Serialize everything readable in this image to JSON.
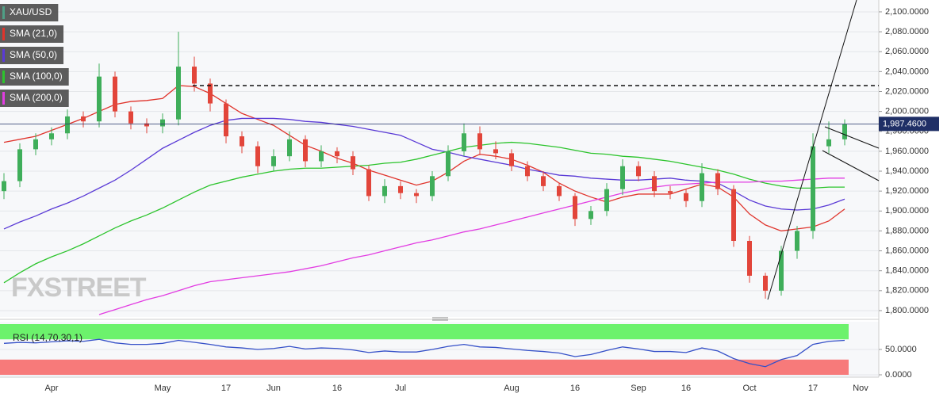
{
  "chart_data": [
    {
      "type": "candlestick",
      "symbol": "XAU/USD",
      "watermark": "FXSTREET",
      "categories": [
        null,
        null,
        null,
        "Apr",
        null,
        null,
        null,
        null,
        null,
        null,
        "May",
        null,
        null,
        null,
        "17",
        null,
        null,
        "Jun",
        null,
        null,
        null,
        "16",
        null,
        null,
        null,
        "Jul",
        null,
        null,
        null,
        null,
        null,
        null,
        "Aug",
        null,
        null,
        null,
        "16",
        null,
        null,
        null,
        "Sep",
        null,
        null,
        "16",
        null,
        null,
        null,
        "Oct",
        null,
        null,
        null,
        "17",
        null,
        null,
        "Nov"
      ],
      "open": [
        1920,
        1930,
        1962,
        1972,
        1978,
        1995,
        1990,
        2035,
        2000,
        1988,
        1985,
        1992,
        2045,
        2028,
        2008,
        1975,
        1965,
        1945,
        1955,
        1972,
        1950,
        1960,
        1955,
        1942,
        1915,
        1925,
        1918,
        1915,
        1935,
        1960,
        1978,
        1962,
        1958,
        1945,
        1935,
        1925,
        1915,
        1892,
        1900,
        1922,
        1945,
        1935,
        1920,
        1918,
        1910,
        1938,
        1922,
        1870,
        1835,
        1820,
        1860,
        1880,
        1965,
        1972,
        null
      ],
      "high": [
        1938,
        1968,
        1978,
        1984,
        2002,
        2000,
        2048,
        2040,
        2005,
        1993,
        1998,
        2080,
        2055,
        2033,
        2012,
        1980,
        1970,
        1962,
        1980,
        1976,
        1966,
        1964,
        1960,
        1946,
        1932,
        1930,
        1922,
        1940,
        1966,
        1988,
        1985,
        1970,
        1962,
        1950,
        1940,
        1928,
        1918,
        1905,
        1928,
        1952,
        1950,
        1940,
        1925,
        1922,
        1948,
        1942,
        1926,
        1875,
        1838,
        1865,
        1885,
        1978,
        1990,
        1992,
        null
      ],
      "low": [
        1912,
        1924,
        1956,
        1966,
        1972,
        1984,
        1984,
        1994,
        1982,
        1978,
        1978,
        1986,
        2020,
        2000,
        1968,
        1958,
        1938,
        1940,
        1950,
        1944,
        1944,
        1948,
        1936,
        1910,
        1908,
        1912,
        1908,
        1910,
        1930,
        1955,
        1956,
        1952,
        1940,
        1930,
        1920,
        1910,
        1885,
        1886,
        1895,
        1916,
        1930,
        1914,
        1912,
        1904,
        1904,
        1916,
        1864,
        1828,
        1812,
        1815,
        1852,
        1872,
        1958,
        1966,
        null
      ],
      "close": [
        1930,
        1962,
        1972,
        1978,
        1995,
        1990,
        2035,
        2000,
        1988,
        1985,
        1992,
        2045,
        2028,
        2008,
        1975,
        1965,
        1945,
        1955,
        1972,
        1950,
        1960,
        1955,
        1942,
        1915,
        1925,
        1918,
        1915,
        1935,
        1960,
        1978,
        1962,
        1958,
        1945,
        1935,
        1925,
        1915,
        1892,
        1900,
        1922,
        1945,
        1935,
        1920,
        1918,
        1910,
        1938,
        1922,
        1870,
        1835,
        1820,
        1860,
        1880,
        1965,
        1972,
        1987,
        null
      ],
      "up_color": "#3fae5a",
      "down_color": "#e2453a",
      "legend_stripe": "#4f9f86",
      "series": [
        {
          "name": "SMA (21,0)",
          "color": "#e0342c",
          "values": [
            1969,
            1972,
            1975,
            1981,
            1987,
            1993,
            2000,
            2007,
            2010,
            2011,
            2013,
            2026,
            2025,
            2018,
            2008,
            1998,
            1992,
            1986,
            1976,
            1966,
            1960,
            1953,
            1948,
            1941,
            1936,
            1931,
            1926,
            1930,
            1939,
            1950,
            1957,
            1955,
            1952,
            1946,
            1939,
            1928,
            1920,
            1914,
            1909,
            1914,
            1917,
            1917,
            1917,
            1922,
            1927,
            1924,
            1914,
            1897,
            1886,
            1880,
            1882,
            1884,
            1890,
            1902,
            null
          ]
        },
        {
          "name": "SMA (50,0)",
          "color": "#5a3ad6",
          "values": [
            1882,
            1889,
            1895,
            1902,
            1908,
            1915,
            1923,
            1931,
            1941,
            1952,
            1963,
            1971,
            1979,
            1986,
            1991,
            1993,
            1993,
            1993,
            1992,
            1990,
            1989,
            1987,
            1985,
            1982,
            1979,
            1976,
            1969,
            1962,
            1959,
            1955,
            1952,
            1949,
            1946,
            1942,
            1939,
            1936,
            1935,
            1933,
            1932,
            1931,
            1931,
            1932,
            1933,
            1931,
            1930,
            1928,
            1920,
            1911,
            1905,
            1902,
            1901,
            1902,
            1906,
            1912,
            null
          ]
        },
        {
          "name": "SMA (100,0)",
          "color": "#2cc42c",
          "values": [
            1828,
            1838,
            1847,
            1854,
            1860,
            1867,
            1875,
            1883,
            1890,
            1896,
            1903,
            1911,
            1919,
            1926,
            1930,
            1934,
            1937,
            1940,
            1942,
            1943,
            1943,
            1944,
            1945,
            1946,
            1948,
            1949,
            1952,
            1956,
            1960,
            1964,
            1966,
            1968,
            1969,
            1968,
            1966,
            1964,
            1961,
            1958,
            1957,
            1955,
            1954,
            1952,
            1950,
            1947,
            1944,
            1941,
            1937,
            1932,
            1928,
            1925,
            1923,
            1923,
            1924,
            1924,
            null
          ]
        },
        {
          "name": "SMA (200,0)",
          "color": "#e23ce2",
          "values": [
            null,
            null,
            null,
            null,
            null,
            null,
            1796,
            1801,
            1806,
            1811,
            1815,
            1820,
            1825,
            1829,
            1831,
            1833,
            1835,
            1837,
            1839,
            1842,
            1845,
            1849,
            1853,
            1856,
            1860,
            1864,
            1868,
            1871,
            1875,
            1879,
            1882,
            1886,
            1890,
            1894,
            1898,
            1902,
            1906,
            1910,
            1914,
            1918,
            1921,
            1924,
            1926,
            1927,
            1928,
            1929,
            1929,
            1929,
            1930,
            1930,
            1931,
            1932,
            1933,
            1933,
            null
          ]
        }
      ],
      "ylim": [
        1793.6,
        2111.9
      ],
      "yticks": [
        {
          "value": 1800,
          "label": "1,800.0000"
        },
        {
          "value": 1820,
          "label": "1,820.0000"
        },
        {
          "value": 1840,
          "label": "1,840.0000"
        },
        {
          "value": 1860,
          "label": "1,860.0000"
        },
        {
          "value": 1880,
          "label": "1,880.0000"
        },
        {
          "value": 1900,
          "label": "1,900.0000"
        },
        {
          "value": 1920,
          "label": "1,920.0000"
        },
        {
          "value": 1940,
          "label": "1,940.0000"
        },
        {
          "value": 1960,
          "label": "1,960.0000"
        },
        {
          "value": 1980,
          "label": "1,980.0000"
        },
        {
          "value": 2000,
          "label": "2,000.0000"
        },
        {
          "value": 2020,
          "label": "2,020.0000"
        },
        {
          "value": 2040,
          "label": "2,040.0000"
        },
        {
          "value": 2060,
          "label": "2,060.0000"
        },
        {
          "value": 2080,
          "label": "2,080.0000"
        },
        {
          "value": 2100,
          "label": "2,100.0000"
        }
      ],
      "last_price": {
        "value": 1987.46,
        "label": "1,987.4600"
      },
      "grid": true
    },
    {
      "type": "line",
      "series": [
        {
          "name": "RSI (14,70,30,1)",
          "color": "#3550c8",
          "values": [
            62,
            64,
            63,
            65,
            67,
            66,
            70,
            63,
            60,
            60,
            62,
            68,
            64,
            60,
            55,
            53,
            50,
            52,
            56,
            51,
            53,
            52,
            49,
            44,
            47,
            45,
            45,
            50,
            56,
            60,
            55,
            54,
            51,
            48,
            46,
            43,
            36,
            40,
            48,
            55,
            51,
            46,
            46,
            44,
            53,
            47,
            32,
            22,
            16,
            30,
            38,
            60,
            66,
            68,
            null
          ]
        }
      ],
      "bands": [
        {
          "from": 70,
          "to": 100,
          "color": "#6cf26c"
        },
        {
          "from": 0,
          "to": 30,
          "color": "#f77a7a"
        }
      ],
      "ylim": [
        -4.7,
        104.7
      ],
      "yticks": [
        {
          "value": 50,
          "label": "50.0000"
        },
        {
          "value": 0,
          "label": "0.0000"
        }
      ],
      "grid": true
    }
  ]
}
